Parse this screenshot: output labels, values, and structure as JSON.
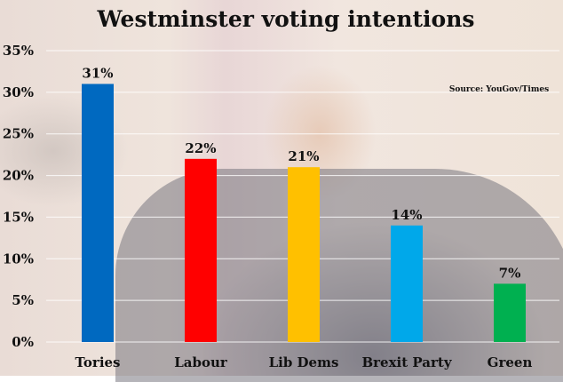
{
  "chart_data": {
    "type": "bar",
    "title": "Westminster voting intentions",
    "source": "Source: YouGov/Times",
    "categories": [
      "Tories",
      "Labour",
      "Lib Dems",
      "Brexit Party",
      "Green"
    ],
    "values": [
      31,
      22,
      21,
      14,
      7
    ],
    "value_labels": [
      "31%",
      "22%",
      "21%",
      "14%",
      "7%"
    ],
    "colors": [
      "#0069c0",
      "#ff0000",
      "#ffc000",
      "#00a8ea",
      "#00b050"
    ],
    "yticks": [
      0,
      5,
      10,
      15,
      20,
      25,
      30,
      35
    ],
    "ytick_labels": [
      "0%",
      "5%",
      "10%",
      "15%",
      "20%",
      "25%",
      "30%",
      "35%"
    ],
    "ylim": [
      0,
      35
    ],
    "xlabel": "",
    "ylabel": "",
    "grid": true,
    "legend": "none"
  }
}
